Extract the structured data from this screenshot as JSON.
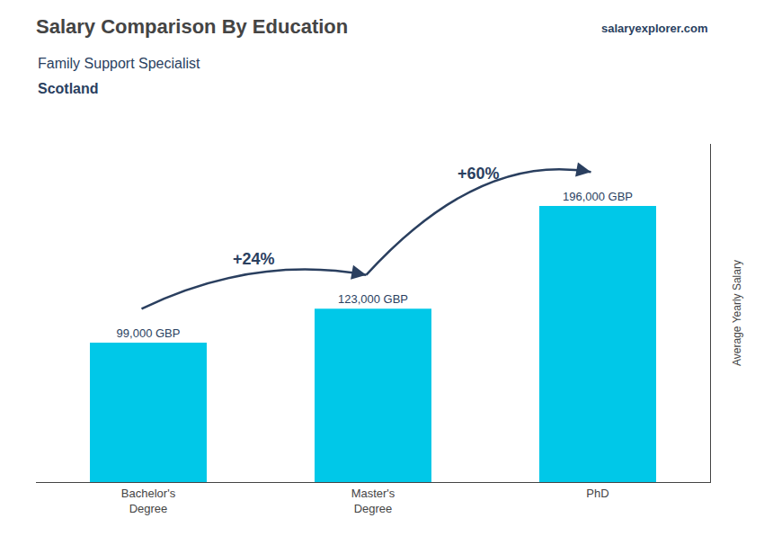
{
  "chart_data": {
    "type": "bar",
    "title": "Salary Comparison By Education",
    "subtitle": [
      "Family Support Specialist",
      "Scotland"
    ],
    "watermark": "salaryexplorer.com",
    "categories": [
      "Bachelor's\nDegree",
      "Master's\nDegree",
      "PhD"
    ],
    "values": [
      99000,
      123000,
      196000
    ],
    "value_labels": [
      "99,000 GBP",
      "123,000 GBP",
      "196,000 GBP"
    ],
    "data_labels": true,
    "annotations": [
      "+24%",
      "+60%"
    ],
    "ylabel": "Average Yearly Salary",
    "color": "#00c8e8",
    "ylim": [
      0,
      240000
    ],
    "grid": false,
    "tick_labels": "x"
  }
}
